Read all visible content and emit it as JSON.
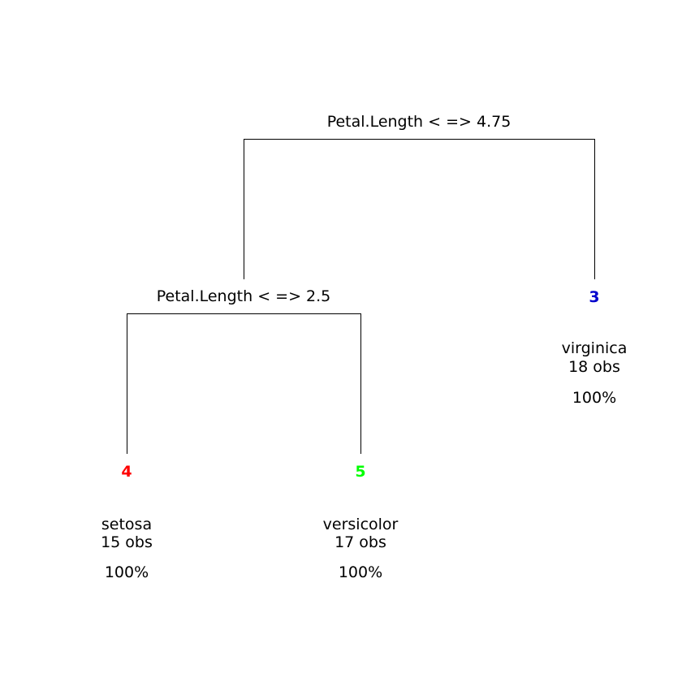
{
  "tree": {
    "splits": [
      {
        "id": "root",
        "label": "Petal.Length < => 4.75"
      },
      {
        "id": "left",
        "label": "Petal.Length < => 2.5"
      }
    ],
    "leaves": [
      {
        "node": "4",
        "color": "#ff0000",
        "class_name": "setosa",
        "obs": "15 obs",
        "pct": "100%"
      },
      {
        "node": "5",
        "color": "#00ff00",
        "class_name": "versicolor",
        "obs": "17 obs",
        "pct": "100%"
      },
      {
        "node": "3",
        "color": "#0000cc",
        "class_name": "virginica",
        "obs": "18 obs",
        "pct": "100%"
      }
    ]
  }
}
